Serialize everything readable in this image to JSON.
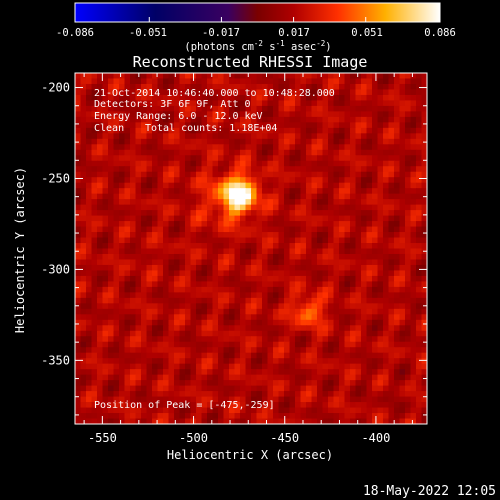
{
  "colorbar": {
    "tick_labels": [
      "-0.086",
      "-0.051",
      "-0.017",
      "0.017",
      "0.051",
      "0.086"
    ],
    "tick_values": [
      -0.086,
      -0.051,
      -0.017,
      0.017,
      0.051,
      0.086
    ],
    "range": [
      -0.086,
      0.086
    ],
    "unit_main": "(photons cm",
    "unit_exp1": "-2",
    "unit_mid1": " s",
    "unit_exp2": "-1",
    "unit_mid2": " asec",
    "unit_exp3": "-2",
    "unit_close": ")"
  },
  "chart_data": {
    "type": "heatmap",
    "title": "Reconstructed RHESSI Image",
    "xlabel": "Heliocentric X (arcsec)",
    "ylabel": "Heliocentric Y (arcsec)",
    "xlim": [
      -565,
      -372
    ],
    "ylim": [
      -385,
      -192
    ],
    "xticks": [
      -550,
      -500,
      -450,
      -400
    ],
    "xtick_labels": [
      "-550",
      "-500",
      "-450",
      "-400"
    ],
    "yticks": [
      -200,
      -250,
      -300,
      -350
    ],
    "ytick_labels": [
      "-200",
      "-250",
      "-300",
      "-350"
    ],
    "sources": [
      {
        "x": -475,
        "y": -259,
        "peak": 0.086,
        "sigma": 7
      },
      {
        "x": -437,
        "y": -323,
        "peak": 0.05,
        "sigma": 6
      },
      {
        "x": -484,
        "y": -262,
        "peak": 0.03,
        "sigma": 12
      },
      {
        "x": -527,
        "y": -294,
        "peak": 0.02,
        "sigma": 6
      },
      {
        "x": -390,
        "y": -370,
        "peak": 0.015,
        "sigma": 10
      }
    ],
    "background_level": 0.017,
    "annotations": {
      "line1": "21-Oct-2014 10:46:40.000 to 10:48:28.000",
      "line2": "Detectors: 3F 6F 9F, Att 0",
      "line3": "Energy Range: 6.0 - 12.0 keV",
      "line4_a": "Clean",
      "line4_b": "Total counts: 1.18E+04",
      "peak_label": "Position of Peak = [-475,-259]"
    }
  },
  "footer": {
    "date": "18-May-2022 12:05"
  }
}
